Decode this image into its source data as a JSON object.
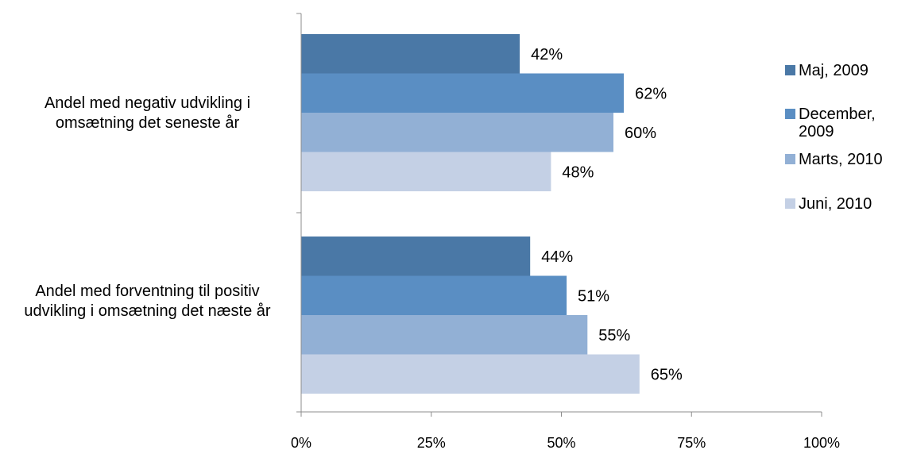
{
  "chart_data": {
    "type": "bar",
    "orientation": "horizontal",
    "categories": [
      "Andel med negativ udvikling i omsætning det seneste år",
      "Andel med forventning til positiv udvikling i omsætning det næste år"
    ],
    "series": [
      {
        "name": "Maj, 2009",
        "color": "#4a78a6",
        "values": [
          42,
          44
        ],
        "labels": [
          "42%",
          "44%"
        ]
      },
      {
        "name": "December, 2009",
        "color": "#5a8ec3",
        "values": [
          62,
          51
        ],
        "labels": [
          "62%",
          "51%"
        ]
      },
      {
        "name": "Marts, 2010",
        "color": "#92b0d5",
        "values": [
          60,
          55
        ],
        "labels": [
          "60%",
          "55%"
        ]
      },
      {
        "name": "Juni, 2010",
        "color": "#c4d0e5",
        "values": [
          48,
          65
        ],
        "labels": [
          "48%",
          "65%"
        ]
      }
    ],
    "xlim": [
      0,
      100
    ],
    "xticks": [
      0,
      25,
      50,
      75,
      100
    ],
    "xtick_labels": [
      "0%",
      "25%",
      "50%",
      "75%",
      "100%"
    ],
    "legend_position": "right",
    "grid": false
  }
}
